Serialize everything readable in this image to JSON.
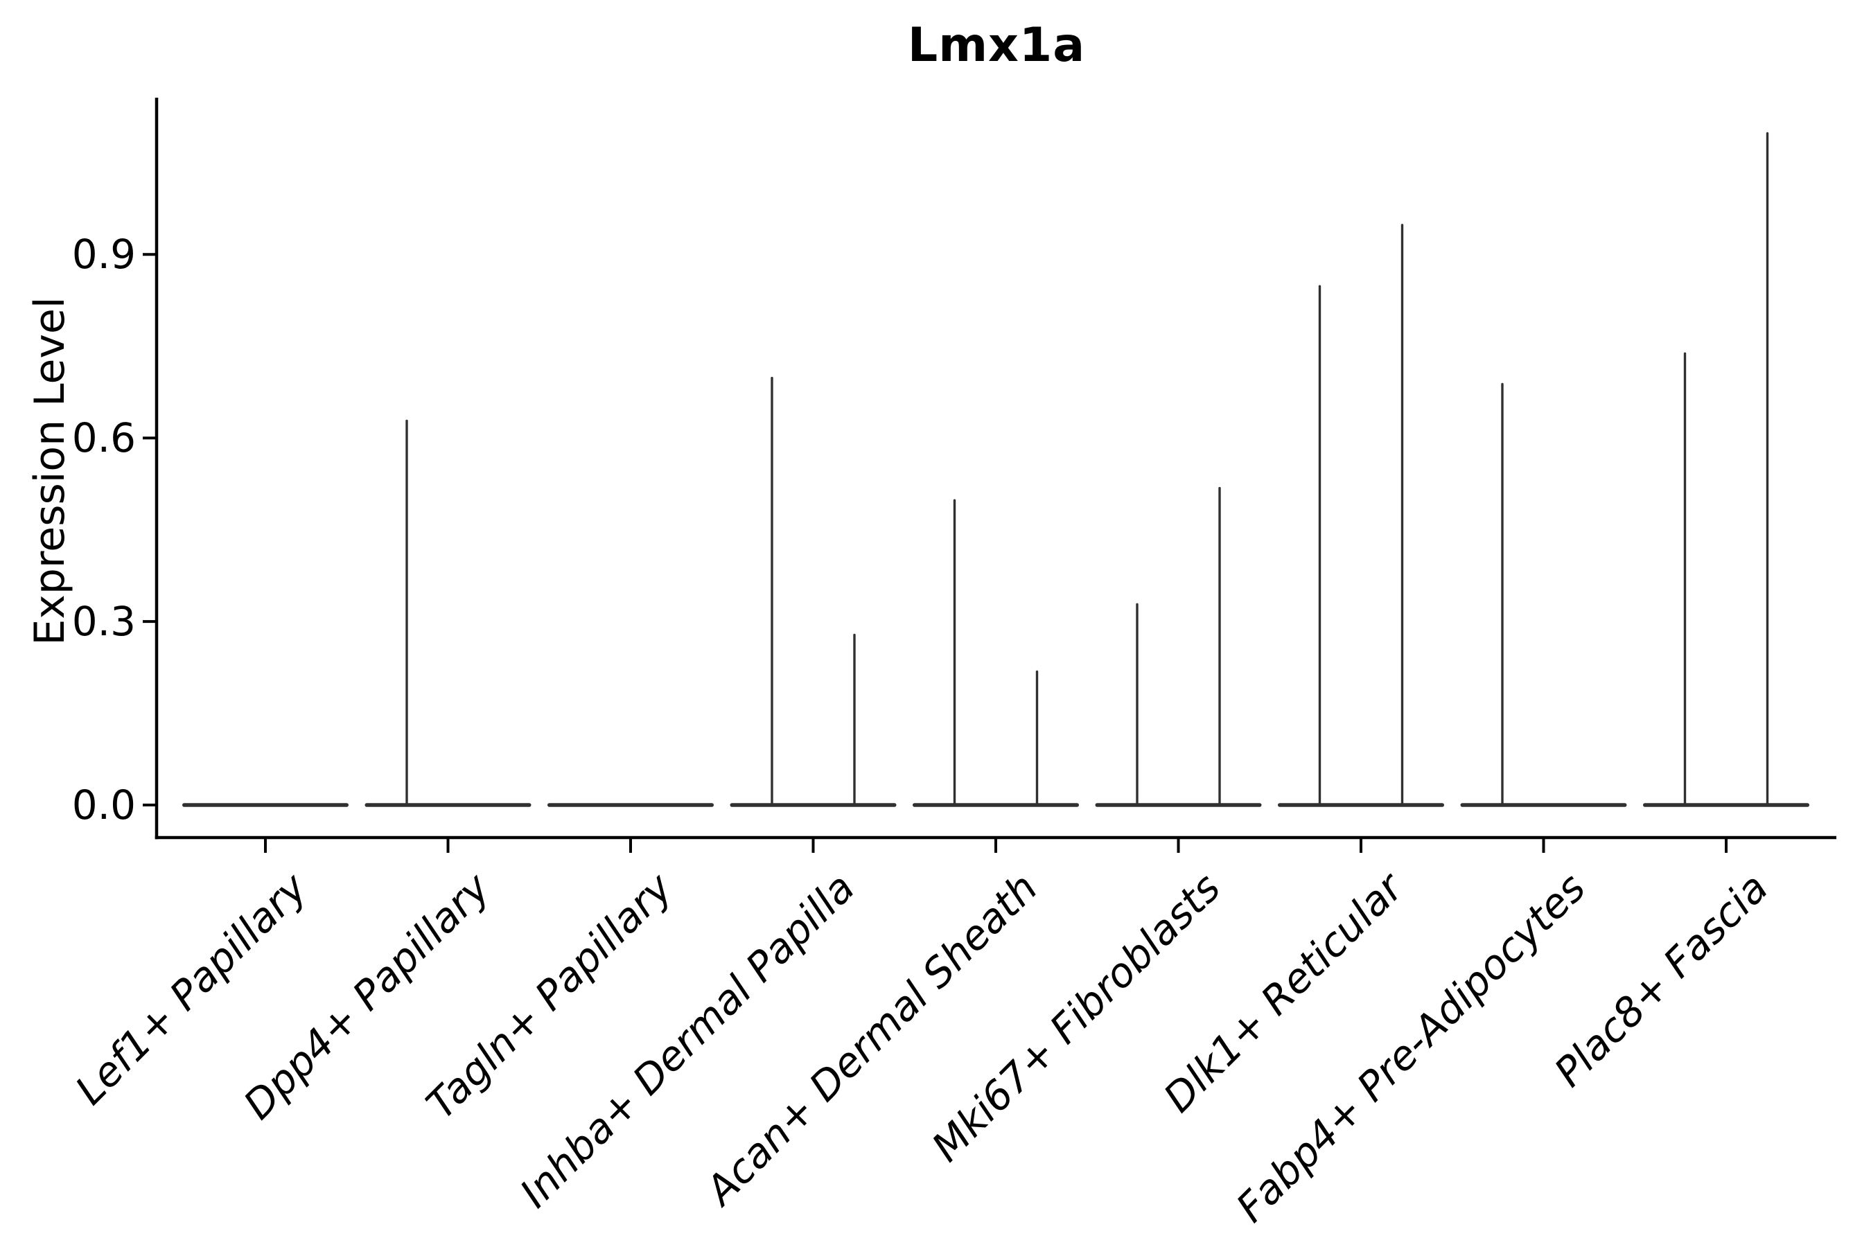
{
  "title": "Lmx1a",
  "y_axis": {
    "label": "Expression Level",
    "tick_labels": [
      "0.0",
      "0.3",
      "0.6",
      "0.9"
    ]
  },
  "x_axis": {
    "tick_labels": [
      "Lef1+ Papillary",
      "Dpp4+ Papillary",
      "Tagln+ Papillary",
      "Inhba+ Dermal Papilla",
      "Acan+ Dermal Sheath",
      "Mki67+ Fibroblasts",
      "Dlk1+ Reticular",
      "Fabp4+ Pre-Adipocytes",
      "Plac8+ Fascia"
    ]
  },
  "chart_data": {
    "type": "violin",
    "title": "Lmx1a",
    "xlabel": "",
    "ylabel": "Expression Level",
    "ylim": [
      -0.06,
      1.16
    ],
    "yticks": [
      0.0,
      0.3,
      0.6,
      0.9
    ],
    "grid": false,
    "legend": false,
    "categories": [
      "Lef1+ Papillary",
      "Dpp4+ Papillary",
      "Tagln+ Papillary",
      "Inhba+ Dermal Papilla",
      "Acan+ Dermal Sheath",
      "Mki67+ Fibroblasts",
      "Dlk1+ Reticular",
      "Fabp4+ Pre-Adipocytes",
      "Plac8+ Fascia"
    ],
    "violins": [
      {
        "category": "Lef1+ Papillary",
        "dense_at": 0.0,
        "spikes": []
      },
      {
        "category": "Dpp4+ Papillary",
        "dense_at": 0.0,
        "spikes": [
          {
            "side": "left",
            "max": 0.63
          }
        ]
      },
      {
        "category": "Tagln+ Papillary",
        "dense_at": 0.0,
        "spikes": []
      },
      {
        "category": "Inhba+ Dermal Papilla",
        "dense_at": 0.0,
        "spikes": [
          {
            "side": "left",
            "max": 0.7
          },
          {
            "side": "right",
            "max": 0.28
          }
        ]
      },
      {
        "category": "Acan+ Dermal Sheath",
        "dense_at": 0.0,
        "spikes": [
          {
            "side": "left",
            "max": 0.5
          },
          {
            "side": "right",
            "max": 0.22
          }
        ]
      },
      {
        "category": "Mki67+ Fibroblasts",
        "dense_at": 0.0,
        "spikes": [
          {
            "side": "left",
            "max": 0.33
          },
          {
            "side": "right",
            "max": 0.52
          }
        ]
      },
      {
        "category": "Dlk1+ Reticular",
        "dense_at": 0.0,
        "spikes": [
          {
            "side": "left",
            "max": 0.85
          },
          {
            "side": "right",
            "max": 0.95
          }
        ]
      },
      {
        "category": "Fabp4+ Pre-Adipocytes",
        "dense_at": 0.0,
        "spikes": [
          {
            "side": "left",
            "max": 0.69
          }
        ]
      },
      {
        "category": "Plac8+ Fascia",
        "dense_at": 0.0,
        "spikes": [
          {
            "side": "left",
            "max": 0.74
          },
          {
            "side": "right",
            "max": 1.1
          }
        ]
      }
    ],
    "colors": {
      "violin": "#303030",
      "spine": "#000000",
      "text": "#000000",
      "background": "#ffffff"
    }
  }
}
